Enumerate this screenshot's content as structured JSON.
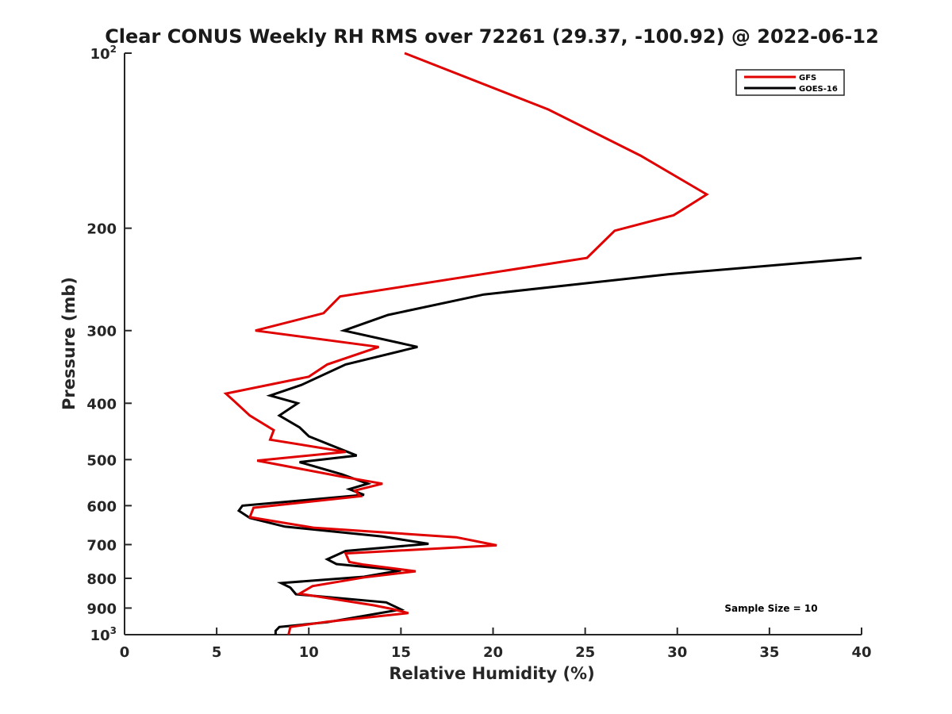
{
  "chart_data": {
    "type": "line",
    "title": "Clear CONUS Weekly RH RMS over 72261 (29.37, -100.92) @ 2022-06-12",
    "xlabel": "Relative Humidity (%)",
    "ylabel": "Pressure (mb)",
    "xlim": [
      0,
      40
    ],
    "ylim": [
      100,
      1000
    ],
    "y_scale": "log",
    "y_reversed": true,
    "x_ticks": [
      0,
      5,
      10,
      15,
      20,
      25,
      30,
      35,
      40
    ],
    "x_tick_labels": [
      "0",
      "5",
      "10",
      "15",
      "20",
      "25",
      "30",
      "35",
      "40"
    ],
    "y_ticks": [
      100,
      200,
      300,
      400,
      500,
      600,
      700,
      800,
      900,
      1000
    ],
    "y_tick_labels": [
      {
        "base": "10",
        "sup": "2"
      },
      {
        "base": "200",
        "sup": ""
      },
      {
        "base": "300",
        "sup": ""
      },
      {
        "base": "400",
        "sup": ""
      },
      {
        "base": "500",
        "sup": ""
      },
      {
        "base": "600",
        "sup": ""
      },
      {
        "base": "700",
        "sup": ""
      },
      {
        "base": "800",
        "sup": ""
      },
      {
        "base": "900",
        "sup": ""
      },
      {
        "base": "10",
        "sup": "3"
      }
    ],
    "grid": false,
    "legend_position": "top-right",
    "annotation": "Sample Size = 10",
    "series": [
      {
        "name": "GFS",
        "color": "#e00000",
        "points": [
          [
            15.2,
            100
          ],
          [
            23.0,
            125
          ],
          [
            28.0,
            150
          ],
          [
            31.6,
            175
          ],
          [
            29.8,
            190
          ],
          [
            26.6,
            202
          ],
          [
            25.1,
            225
          ],
          [
            11.7,
            262
          ],
          [
            10.8,
            280
          ],
          [
            7.1,
            300
          ],
          [
            13.8,
            320
          ],
          [
            11.0,
            343
          ],
          [
            10.0,
            360
          ],
          [
            5.5,
            385
          ],
          [
            6.0,
            398
          ],
          [
            6.8,
            420
          ],
          [
            8.1,
            445
          ],
          [
            7.9,
            462
          ],
          [
            12.0,
            485
          ],
          [
            7.2,
            502
          ],
          [
            11.8,
            535
          ],
          [
            14.0,
            550
          ],
          [
            12.5,
            565
          ],
          [
            12.8,
            578
          ],
          [
            7.0,
            605
          ],
          [
            6.8,
            628
          ],
          [
            10.3,
            655
          ],
          [
            18.0,
            680
          ],
          [
            20.2,
            702
          ],
          [
            12.0,
            725
          ],
          [
            12.2,
            750
          ],
          [
            13.0,
            758
          ],
          [
            15.8,
            778
          ],
          [
            13.0,
            797
          ],
          [
            10.2,
            825
          ],
          [
            9.5,
            850
          ],
          [
            13.5,
            890
          ],
          [
            14.5,
            903
          ],
          [
            15.4,
            918
          ],
          [
            11.0,
            950
          ],
          [
            9.0,
            970
          ],
          [
            8.9,
            1000
          ]
        ]
      },
      {
        "name": "GOES-16",
        "color": "#000000",
        "points": [
          [
            40.0,
            225
          ],
          [
            29.5,
            240
          ],
          [
            19.5,
            260
          ],
          [
            14.3,
            282
          ],
          [
            11.9,
            300
          ],
          [
            15.9,
            320
          ],
          [
            12.0,
            343
          ],
          [
            9.6,
            372
          ],
          [
            7.9,
            388
          ],
          [
            9.4,
            400
          ],
          [
            8.4,
            420
          ],
          [
            9.5,
            440
          ],
          [
            10.0,
            456
          ],
          [
            12.6,
            492
          ],
          [
            9.5,
            505
          ],
          [
            11.8,
            530
          ],
          [
            13.2,
            550
          ],
          [
            12.2,
            562
          ],
          [
            13.0,
            575
          ],
          [
            6.4,
            600
          ],
          [
            6.2,
            612
          ],
          [
            6.8,
            630
          ],
          [
            8.7,
            652
          ],
          [
            14.0,
            678
          ],
          [
            16.5,
            698
          ],
          [
            12.0,
            718
          ],
          [
            11.0,
            742
          ],
          [
            11.5,
            756
          ],
          [
            15.0,
            775
          ],
          [
            13.0,
            795
          ],
          [
            8.5,
            815
          ],
          [
            9.0,
            830
          ],
          [
            9.3,
            852
          ],
          [
            14.2,
            880
          ],
          [
            15.0,
            905
          ],
          [
            11.0,
            952
          ],
          [
            8.4,
            970
          ],
          [
            8.2,
            985
          ],
          [
            8.2,
            1000
          ]
        ]
      }
    ]
  }
}
